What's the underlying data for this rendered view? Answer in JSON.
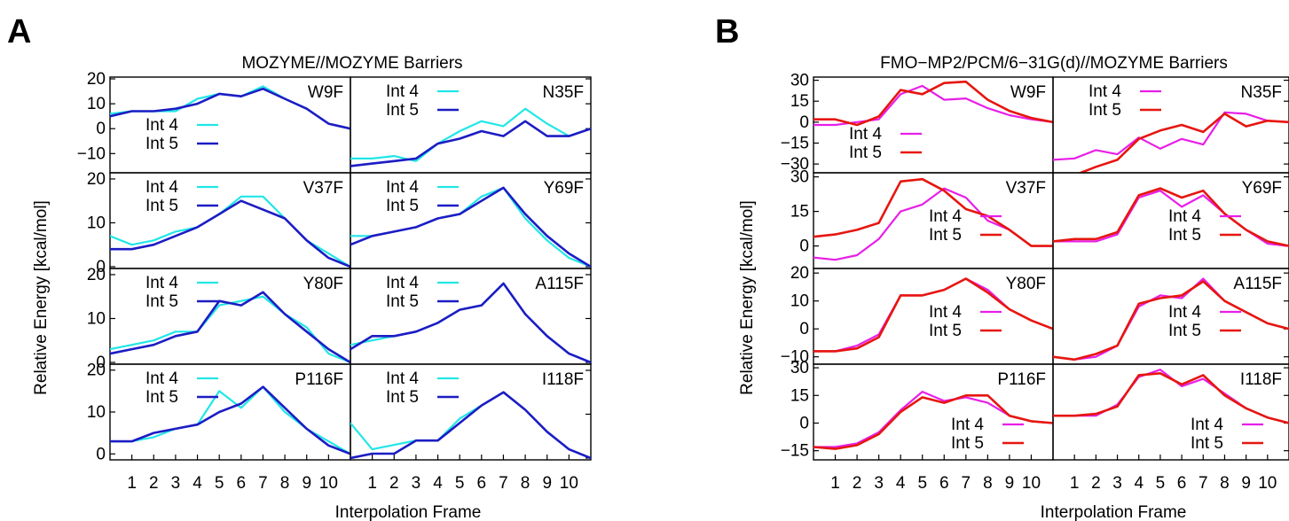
{
  "panel_labels": {
    "a": "A",
    "b": "B"
  },
  "colors": {
    "int4_a": "#22e6e6",
    "int5_a": "#1c1cc4",
    "int4_b": "#e81ee8",
    "int5_b": "#e6160f",
    "frame": "#000000"
  },
  "chart_data": [
    {
      "type": "line",
      "title": "MOZYME//MOZYME Barriers",
      "ylabel": "Relative Energy [kcal/mol]",
      "xlabel": "Interpolation Frame",
      "x": [
        0,
        1,
        2,
        3,
        4,
        5,
        6,
        7,
        8,
        9,
        10,
        11
      ],
      "xtick_labels": [
        "1",
        "2",
        "3",
        "4",
        "5",
        "6",
        "7",
        "8",
        "9",
        "10"
      ],
      "xlim": [
        0,
        11
      ],
      "legend": [
        "Int 4",
        "Int 5"
      ],
      "grid": false,
      "subplots": [
        {
          "name": "W9F",
          "ylim": [
            -17,
            20
          ],
          "yticks": [
            20,
            10,
            0,
            -10
          ],
          "legend_pos": "left",
          "int4": [
            6,
            7,
            7,
            7,
            12,
            14,
            13,
            17,
            12,
            8,
            2,
            0
          ],
          "int5": [
            5,
            7,
            7,
            8,
            10,
            14,
            13,
            16,
            12,
            8,
            2,
            0
          ]
        },
        {
          "name": "N35F",
          "ylim": [
            -17,
            20
          ],
          "yticks": [],
          "legend_pos": "top",
          "int4": [
            -12,
            -12,
            -11,
            -13,
            -6,
            -1,
            3,
            1,
            8,
            2,
            -3,
            0
          ],
          "int5": [
            -15,
            -14,
            -13,
            -12,
            -6,
            -4,
            -1,
            -3,
            3,
            -3,
            -3,
            0
          ]
        },
        {
          "name": "V37F",
          "ylim": [
            0,
            21
          ],
          "yticks": [
            20,
            10,
            0
          ],
          "legend_pos": "top",
          "int4": [
            7,
            5,
            6,
            8,
            9,
            12,
            16,
            16,
            11,
            6,
            3,
            0
          ],
          "int5": [
            4,
            4,
            5,
            7,
            9,
            12,
            15,
            13,
            11,
            6,
            2,
            0
          ]
        },
        {
          "name": "Y69F",
          "ylim": [
            0,
            21
          ],
          "yticks": [],
          "legend_pos": "top",
          "int4": [
            7,
            7,
            8,
            9,
            11,
            12,
            16,
            18,
            11,
            6,
            2,
            0
          ],
          "int5": [
            5,
            7,
            8,
            9,
            11,
            12,
            15,
            18,
            12,
            7,
            3,
            0
          ]
        },
        {
          "name": "Y80F",
          "ylim": [
            0,
            21
          ],
          "yticks": [
            20,
            10,
            0
          ],
          "legend_pos": "top",
          "int4": [
            3,
            4,
            5,
            7,
            7,
            13,
            14,
            15,
            11,
            8,
            2,
            0
          ],
          "int5": [
            2,
            3,
            4,
            6,
            7,
            14,
            13,
            16,
            11,
            7,
            3,
            0
          ]
        },
        {
          "name": "A115F",
          "ylim": [
            0,
            21
          ],
          "yticks": [],
          "legend_pos": "top",
          "int4": [
            4,
            5,
            6,
            7,
            9,
            12,
            13,
            18,
            11,
            6,
            2,
            0
          ],
          "int5": [
            3,
            6,
            6,
            7,
            9,
            12,
            13,
            18,
            11,
            6,
            2,
            0
          ]
        },
        {
          "name": "P116F",
          "ylim": [
            -1,
            21
          ],
          "yticks": [
            20,
            10,
            0
          ],
          "legend_pos": "top",
          "int4": [
            3,
            3,
            4,
            6,
            7,
            15,
            11,
            16,
            10,
            6,
            3,
            0
          ],
          "int5": [
            3,
            3,
            5,
            6,
            7,
            10,
            12,
            16,
            11,
            6,
            2,
            0
          ]
        },
        {
          "name": "I118F",
          "ylim": [
            0,
            21
          ],
          "yticks": [],
          "legend_pos": "top",
          "int4": [
            8,
            2,
            3,
            4,
            4,
            9,
            12,
            15,
            11,
            6,
            2,
            0
          ],
          "int5": [
            0,
            1,
            1,
            4,
            4,
            8,
            12,
            15,
            11,
            6,
            2,
            0
          ]
        }
      ]
    },
    {
      "type": "line",
      "title": "FMO−MP2/PCM/6−31G(d)//MOZYME Barriers",
      "ylabel": "Relative Energy [kcal/mol]",
      "xlabel": "Interpolation Frame",
      "x": [
        0,
        1,
        2,
        3,
        4,
        5,
        6,
        7,
        8,
        9,
        10,
        11
      ],
      "xtick_labels": [
        "1",
        "2",
        "3",
        "4",
        "5",
        "6",
        "7",
        "8",
        "9",
        "10"
      ],
      "xlim": [
        0,
        11
      ],
      "legend": [
        "Int 4",
        "Int 5"
      ],
      "grid": false,
      "subplots": [
        {
          "name": "W9F",
          "ylim": [
            -35,
            31
          ],
          "yticks": [
            30,
            15,
            0,
            -15,
            -30
          ],
          "legend_pos": "left",
          "int4": [
            -2,
            -2,
            0,
            2,
            20,
            26,
            16,
            17,
            10,
            5,
            2,
            0
          ],
          "int5": [
            2,
            2,
            -2,
            4,
            23,
            20,
            28,
            29,
            16,
            8,
            3,
            0
          ]
        },
        {
          "name": "N35F",
          "ylim": [
            -35,
            31
          ],
          "yticks": [],
          "legend_pos": "top",
          "int4": [
            -27,
            -26,
            -20,
            -23,
            -11,
            -19,
            -12,
            -16,
            7,
            6,
            1,
            0
          ],
          "int5": [
            -38,
            -38,
            -32,
            -27,
            -12,
            -6,
            -2,
            -7,
            6,
            -3,
            1,
            0
          ]
        },
        {
          "name": "V37F",
          "ylim": [
            -9,
            31
          ],
          "yticks": [
            30,
            15,
            0
          ],
          "legend_pos": "center",
          "int4": [
            -5,
            -6,
            -4,
            3,
            15,
            18,
            25,
            21,
            11,
            7,
            0,
            0
          ],
          "int5": [
            4,
            5,
            7,
            10,
            28,
            29,
            24,
            16,
            13,
            7,
            0,
            0
          ]
        },
        {
          "name": "Y69F",
          "ylim": [
            -9,
            31
          ],
          "yticks": [],
          "legend_pos": "center",
          "int4": [
            2,
            2,
            2,
            5,
            21,
            24,
            17,
            22,
            14,
            7,
            1,
            0
          ],
          "int5": [
            2,
            3,
            3,
            6,
            22,
            25,
            21,
            24,
            14,
            7,
            2,
            0
          ]
        },
        {
          "name": "Y80F",
          "ylim": [
            -12,
            21
          ],
          "yticks": [
            20,
            10,
            0,
            -10
          ],
          "legend_pos": "center",
          "int4": [
            -8,
            -8,
            -6,
            -2,
            12,
            12,
            14,
            18,
            14,
            7,
            3,
            0
          ],
          "int5": [
            -8,
            -8,
            -7,
            -3,
            12,
            12,
            14,
            18,
            13,
            7,
            3,
            0
          ]
        },
        {
          "name": "A115F",
          "ylim": [
            -12,
            21
          ],
          "yticks": [],
          "legend_pos": "center",
          "int4": [
            -10,
            -11,
            -10,
            -6,
            8,
            12,
            11,
            18,
            10,
            6,
            2,
            0
          ],
          "int5": [
            -10,
            -11,
            -9,
            -6,
            9,
            11,
            12,
            17,
            10,
            6,
            2,
            0
          ]
        },
        {
          "name": "P116F",
          "ylim": [
            -19,
            31
          ],
          "yticks": [
            30,
            15,
            0,
            -15
          ],
          "legend_pos": "bottom",
          "int4": [
            -13,
            -13,
            -11,
            -5,
            7,
            17,
            12,
            14,
            11,
            4,
            1,
            0
          ],
          "int5": [
            -13,
            -14,
            -12,
            -6,
            6,
            14,
            11,
            15,
            15,
            4,
            1,
            0
          ]
        },
        {
          "name": "I118F",
          "ylim": [
            -19,
            31
          ],
          "yticks": [],
          "legend_pos": "bottom",
          "int4": [
            4,
            4,
            4,
            10,
            25,
            29,
            20,
            24,
            16,
            8,
            3,
            0
          ],
          "int5": [
            4,
            4,
            5,
            9,
            26,
            27,
            21,
            26,
            15,
            8,
            3,
            0
          ]
        }
      ]
    }
  ]
}
